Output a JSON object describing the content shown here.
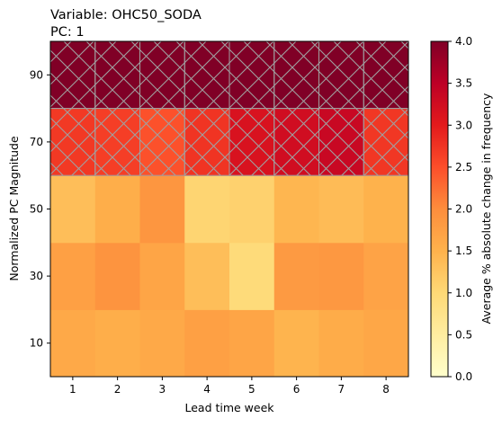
{
  "chart_data": {
    "type": "heatmap",
    "title_lines": [
      "Variable: OHC50_SODA",
      "PC: 1"
    ],
    "xlabel": "Lead time week",
    "ylabel": "Normalized PC Magnitude",
    "x": [
      "1",
      "2",
      "3",
      "4",
      "5",
      "6",
      "7",
      "8"
    ],
    "y": [
      "10",
      "30",
      "50",
      "70",
      "90"
    ],
    "values": [
      [
        1.62,
        1.55,
        1.62,
        1.75,
        1.68,
        1.48,
        1.58,
        1.65
      ],
      [
        1.75,
        1.9,
        1.68,
        1.35,
        0.95,
        1.82,
        1.85,
        1.7
      ],
      [
        1.35,
        1.55,
        1.88,
        1.05,
        1.1,
        1.45,
        1.38,
        1.5
      ],
      [
        2.7,
        2.65,
        2.48,
        2.75,
        3.15,
        3.25,
        3.35,
        2.72
      ],
      [
        4.0,
        4.0,
        4.0,
        4.0,
        4.0,
        4.0,
        4.0,
        4.0
      ]
    ],
    "hatched_rows": [
      "70",
      "90"
    ],
    "colorbar": {
      "label": "Average % absolute change in frequency",
      "range": [
        0,
        4
      ],
      "ticks": [
        "0.0",
        "0.5",
        "1.0",
        "1.5",
        "2.0",
        "2.5",
        "3.0",
        "3.5",
        "4.0"
      ],
      "colormap": "YlOrRd",
      "stops": [
        "#ffffcc",
        "#ffeda0",
        "#fed976",
        "#feb24c",
        "#fd8d3c",
        "#fc4e2a",
        "#e31a1c",
        "#bd0026",
        "#800026"
      ]
    }
  }
}
